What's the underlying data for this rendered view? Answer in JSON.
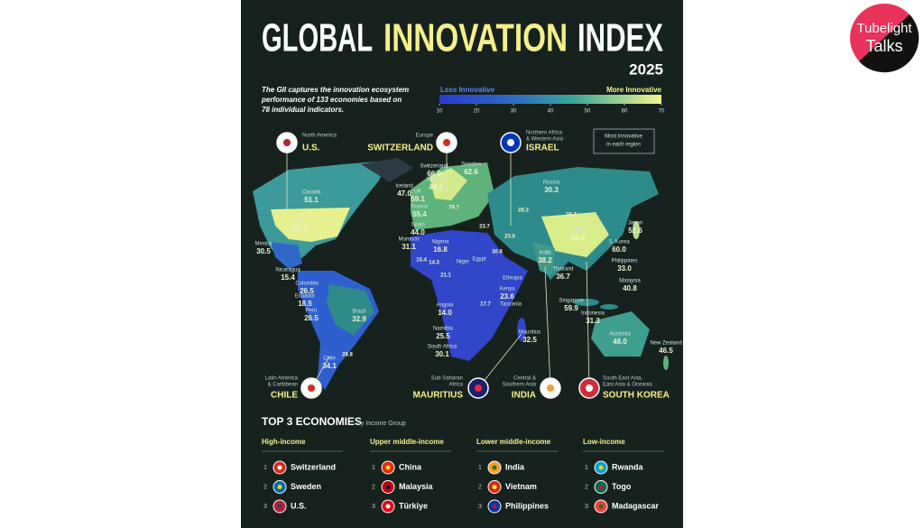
{
  "header": {
    "title_parts": [
      "GLOBAL",
      "INNOVATION",
      "INDEX"
    ],
    "year": "2025"
  },
  "description": [
    "The GII captures the innovation ecosystem",
    "performance of 133 economies based on",
    "78 individual indicators."
  ],
  "legend": {
    "low": "Less Innovative",
    "high": "More Innovative",
    "ticks": [
      10,
      20,
      30,
      40,
      50,
      60,
      70
    ]
  },
  "note": [
    "Most innovative",
    "in each region"
  ],
  "callouts": [
    {
      "region": [
        "North America"
      ],
      "country": "U.S."
    },
    {
      "region": [
        "Europe"
      ],
      "country": "SWITZERLAND"
    },
    {
      "region": [
        "Northern Africa",
        "& Western Asia"
      ],
      "country": "ISRAEL"
    },
    {
      "region": [
        "Latin America",
        "& Caribbean"
      ],
      "country": "CHILE"
    },
    {
      "region": [
        "Sub-Saharan",
        "Africa"
      ],
      "country": "MAURITIUS"
    },
    {
      "region": [
        "Central &",
        "Southern Asia"
      ],
      "country": "INDIA"
    },
    {
      "region": [
        "South East Asia,",
        "East Asia & Oceania"
      ],
      "country": "SOUTH KOREA"
    }
  ],
  "map_labels": [
    {
      "name": "Canada",
      "value": "51.1"
    },
    {
      "name": "U.S.",
      "value": "61.7"
    },
    {
      "name": "Mexico",
      "value": "30.5"
    },
    {
      "name": "Nicaragua",
      "value": "15.4"
    },
    {
      "name": "Colombia",
      "value": "26.5"
    },
    {
      "name": "Ecuador",
      "value": "18.5"
    },
    {
      "name": "Peru",
      "value": "26.5"
    },
    {
      "name": "Brazil",
      "value": "32.9"
    },
    {
      "name": "Chile",
      "value": "34.1"
    },
    {
      "name": "Iceland",
      "value": "47.0"
    },
    {
      "name": "UK",
      "value": "59.1"
    },
    {
      "name": "Switzerland",
      "value": "66.0"
    },
    {
      "name": "Sweden",
      "value": "62.6"
    },
    {
      "name": "Norway",
      "value": "49.1"
    },
    {
      "name": "France",
      "value": "55.4"
    },
    {
      "name": "Spain",
      "value": "44.0"
    },
    {
      "name": "Morocco",
      "value": "31.1"
    },
    {
      "name": "Nigeria",
      "value": "16.8"
    },
    {
      "name": "Niger"
    },
    {
      "name": "Egypt"
    },
    {
      "name": "Ethiopia"
    },
    {
      "name": "Kenya",
      "value": "23.6"
    },
    {
      "name": "Tanzania"
    },
    {
      "name": "Angola",
      "value": "14.0"
    },
    {
      "name": "Namibia",
      "value": "25.5"
    },
    {
      "name": "South Africa",
      "value": "30.1"
    },
    {
      "name": "Mauritius",
      "value": "32.5"
    },
    {
      "name": "Russia",
      "value": "30.3"
    },
    {
      "name": "China",
      "value": "56.8"
    },
    {
      "name": "Japan",
      "value": "52.6"
    },
    {
      "name": "S. Korea",
      "value": "60.0"
    },
    {
      "name": "Philippines",
      "value": "33.0"
    },
    {
      "name": "Malaysia",
      "value": "40.8"
    },
    {
      "name": "India",
      "value": "38.2"
    },
    {
      "name": "Thailand",
      "value": "36.7"
    },
    {
      "name": "Singapore",
      "value": "59.9"
    },
    {
      "name": "Indonesia",
      "value": "31.3"
    },
    {
      "name": "Australia",
      "value": "48.0"
    },
    {
      "name": "New Zealand",
      "value": "46.5"
    }
  ],
  "map_values": [
    "79.7",
    "28.3",
    "28.7",
    "23.7",
    "23.5",
    "30.8",
    "15.4",
    "14.3",
    "21.1",
    "17.7",
    "28.8"
  ],
  "top3": {
    "title": "TOP 3 ECONOMIES",
    "subtitle": "by Income Group",
    "ranks": [
      1,
      2,
      3
    ],
    "groups": [
      {
        "name": "High-income",
        "countries": [
          "Switzerland",
          "Sweden",
          "U.S."
        ]
      },
      {
        "name": "Upper middle-income",
        "countries": [
          "China",
          "Malaysia",
          "Türkiye"
        ]
      },
      {
        "name": "Lower middle-income",
        "countries": [
          "India",
          "Vietnam",
          "Philippines"
        ]
      },
      {
        "name": "Low-income",
        "countries": [
          "Rwanda",
          "Togo",
          "Madagascar"
        ]
      }
    ]
  },
  "logo": [
    "Tubelight",
    "Talks"
  ]
}
